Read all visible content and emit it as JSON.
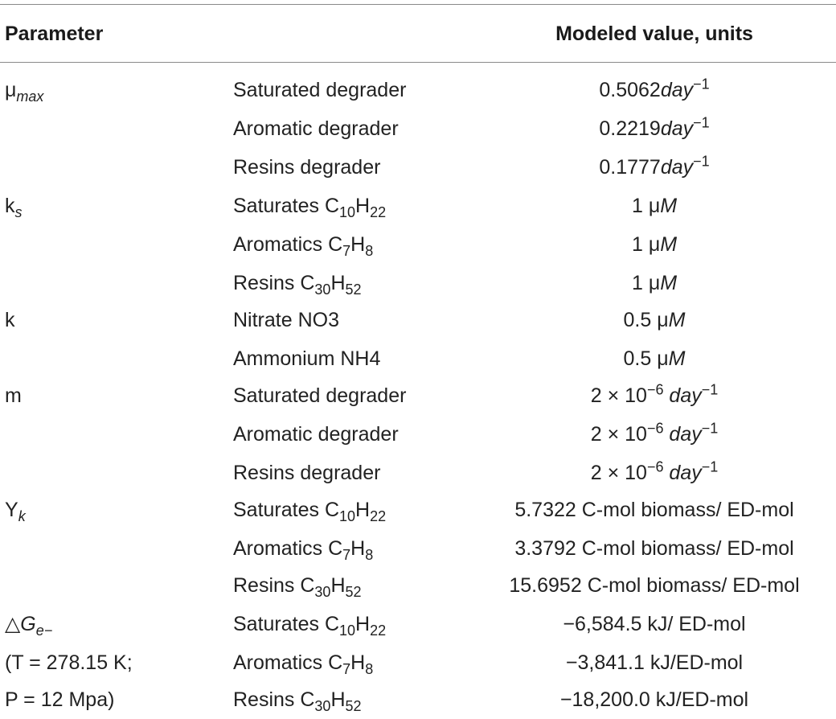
{
  "header": {
    "param": "Parameter",
    "value": "Modeled value, units"
  },
  "params": {
    "mu_sym": "μ",
    "mu_sub": "max",
    "ks_sym": "k",
    "ks_sub": "s",
    "k": "k",
    "m": "m",
    "y_sym": "Y",
    "y_sub": "k",
    "dg_sym": "△",
    "dg_G": "G",
    "dg_sub": "e−",
    "cond1": "(T = 278.15 K;",
    "cond2": "P = 12 Mpa)"
  },
  "labels": {
    "sat_degrader": "Saturated degrader",
    "aro_degrader": "Aromatic degrader",
    "res_degrader": "Resins degrader",
    "saturates": "Saturates C",
    "sat_n1": "10",
    "sat_H": "H",
    "sat_n2": "22",
    "aromatics": "Aromatics C",
    "aro_n1": "7",
    "aro_H": "H",
    "aro_n2": "8",
    "resins": "Resins C",
    "res_n1": "30",
    "res_H": "H",
    "res_n2": "52",
    "nitrate": "Nitrate NO3",
    "ammonium": "Ammonium NH4"
  },
  "values": {
    "mu_sat": "0.5062",
    "mu_aro": "0.2219",
    "mu_res": "0.1777",
    "day": "day",
    "minus1": "−1",
    "one": "1 ",
    "half": "0.5 ",
    "mu": "μ",
    "M": "M",
    "m_coef": "2 × 10",
    "m_exp": "−6",
    "y_sat": "5.7322 C-mol biomass/ ED-mol",
    "y_aro": "3.3792 C-mol biomass/ ED-mol",
    "y_res": "15.6952 C-mol biomass/ ED-mol",
    "dg_sat": "−6,584.5 kJ/ ED-mol",
    "dg_aro": "−3,841.1 kJ/ED-mol",
    "dg_res": "−18,200.0 kJ/ED-mol"
  }
}
